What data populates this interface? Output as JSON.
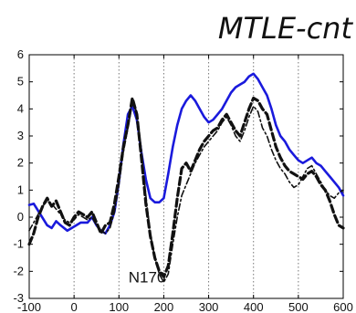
{
  "chart_data": {
    "type": "line",
    "title": "MTLE-cnt",
    "xlabel": "",
    "ylabel": "",
    "xlim": [
      -100,
      600
    ],
    "ylim": [
      -3,
      6
    ],
    "xticks": [
      -100,
      0,
      100,
      200,
      300,
      400,
      500,
      600
    ],
    "yticks": [
      -3,
      -2,
      -1,
      0,
      1,
      2,
      3,
      4,
      5,
      6
    ],
    "vertical_dotted_lines": [
      0,
      100,
      200,
      300,
      400,
      500
    ],
    "annotations": [
      {
        "text": "N170",
        "x": 200,
        "y": -2.2
      }
    ],
    "series": [
      {
        "color": "#1a1adc",
        "dash": "solid",
        "x": [
          -100,
          -90,
          -75,
          -60,
          -50,
          -40,
          -30,
          -15,
          0,
          15,
          30,
          40,
          50,
          60,
          70,
          80,
          90,
          100,
          110,
          120,
          130,
          140,
          150,
          160,
          170,
          180,
          190,
          200,
          210,
          220,
          230,
          240,
          250,
          260,
          270,
          280,
          290,
          300,
          310,
          320,
          330,
          340,
          350,
          360,
          370,
          380,
          390,
          400,
          410,
          420,
          430,
          440,
          450,
          460,
          470,
          480,
          490,
          500,
          510,
          520,
          530,
          540,
          550,
          560,
          570,
          580,
          590,
          600
        ],
        "values": [
          0.45,
          0.5,
          0.1,
          -0.3,
          -0.4,
          -0.15,
          -0.3,
          -0.5,
          -0.35,
          -0.2,
          -0.2,
          0.0,
          -0.3,
          -0.5,
          -0.6,
          -0.3,
          0.2,
          1.3,
          2.7,
          3.8,
          4.1,
          3.6,
          2.4,
          1.4,
          0.7,
          0.55,
          0.55,
          0.7,
          1.6,
          2.6,
          3.4,
          4.0,
          4.3,
          4.5,
          4.3,
          4.0,
          3.7,
          3.5,
          3.6,
          3.8,
          4.0,
          4.3,
          4.6,
          4.8,
          4.9,
          5.0,
          5.2,
          5.3,
          5.1,
          4.8,
          4.5,
          4.0,
          3.4,
          3.0,
          2.8,
          2.5,
          2.3,
          2.1,
          2.0,
          2.1,
          2.2,
          2.0,
          1.9,
          1.7,
          1.5,
          1.3,
          1.1,
          0.8
        ]
      },
      {
        "color": "#111111",
        "dash": "dashed",
        "x": [
          -100,
          -90,
          -80,
          -70,
          -60,
          -50,
          -40,
          -30,
          -20,
          -10,
          0,
          10,
          20,
          30,
          40,
          50,
          60,
          70,
          80,
          90,
          100,
          110,
          120,
          130,
          140,
          150,
          160,
          170,
          180,
          190,
          200,
          210,
          220,
          230,
          240,
          250,
          260,
          270,
          280,
          290,
          300,
          310,
          320,
          330,
          340,
          350,
          360,
          370,
          380,
          390,
          400,
          410,
          420,
          430,
          440,
          450,
          460,
          470,
          480,
          490,
          500,
          510,
          520,
          530,
          540,
          550,
          560,
          570,
          580,
          590,
          600
        ],
        "values": [
          -1.0,
          -0.6,
          0.0,
          0.4,
          0.7,
          0.4,
          0.6,
          0.2,
          -0.2,
          -0.3,
          0.0,
          0.2,
          0.1,
          0.0,
          0.2,
          -0.2,
          -0.6,
          -0.3,
          -0.2,
          0.5,
          1.5,
          2.6,
          3.4,
          4.4,
          3.8,
          2.2,
          0.5,
          -0.7,
          -1.5,
          -2.0,
          -2.2,
          -1.8,
          -0.6,
          0.7,
          1.8,
          2.0,
          1.7,
          2.1,
          2.5,
          2.8,
          3.0,
          3.2,
          3.3,
          3.6,
          3.8,
          3.5,
          3.2,
          3.0,
          3.5,
          4.0,
          4.4,
          4.3,
          4.0,
          3.8,
          3.2,
          2.6,
          2.2,
          1.9,
          1.7,
          1.6,
          1.5,
          1.4,
          1.6,
          1.7,
          1.5,
          1.2,
          1.0,
          0.6,
          0.1,
          -0.3,
          -0.4
        ]
      },
      {
        "color": "#111111",
        "dash": "dashdot",
        "x": [
          -100,
          -90,
          -80,
          -70,
          -60,
          -50,
          -40,
          -30,
          -20,
          -10,
          0,
          10,
          20,
          30,
          40,
          50,
          60,
          70,
          80,
          90,
          100,
          110,
          120,
          130,
          140,
          150,
          160,
          170,
          180,
          190,
          200,
          210,
          220,
          230,
          240,
          250,
          260,
          270,
          280,
          290,
          300,
          310,
          320,
          330,
          340,
          350,
          360,
          370,
          380,
          390,
          400,
          410,
          420,
          430,
          440,
          450,
          460,
          470,
          480,
          490,
          500,
          510,
          520,
          530,
          540,
          550,
          560,
          570,
          580,
          590,
          600
        ],
        "values": [
          -0.5,
          -0.2,
          0.1,
          0.4,
          0.6,
          0.5,
          0.3,
          0.1,
          -0.1,
          -0.2,
          -0.1,
          0.1,
          0.0,
          -0.1,
          0.0,
          -0.3,
          -0.5,
          -0.6,
          -0.4,
          0.2,
          1.2,
          2.4,
          3.3,
          4.2,
          3.9,
          2.5,
          0.8,
          -0.6,
          -1.5,
          -2.1,
          -2.4,
          -2.1,
          -1.0,
          0.0,
          0.8,
          1.2,
          1.6,
          2.0,
          2.3,
          2.6,
          2.8,
          3.0,
          3.2,
          3.5,
          3.7,
          3.4,
          3.0,
          2.8,
          3.2,
          3.7,
          4.1,
          3.9,
          3.3,
          3.0,
          2.5,
          2.1,
          1.8,
          1.6,
          1.3,
          1.1,
          1.2,
          1.5,
          1.8,
          1.9,
          1.6,
          1.3,
          1.0,
          0.8,
          0.7,
          0.9,
          1.0
        ]
      }
    ]
  }
}
